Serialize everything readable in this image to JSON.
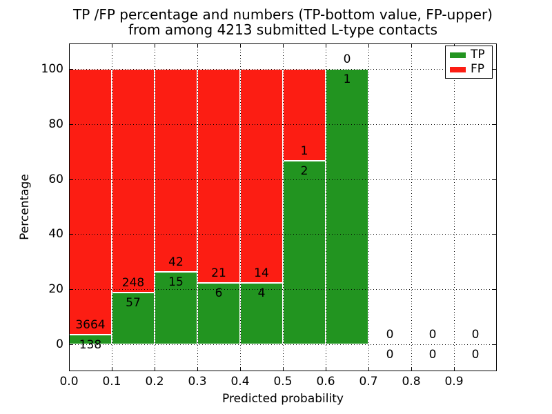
{
  "figure": {
    "title_line1": "TP /FP percentage and numbers (TP-bottom value, FP-upper)",
    "title_line2": "from among 4213 submitted L-type contacts"
  },
  "chart_data": {
    "type": "bar",
    "stacked": true,
    "normalized": "each bin scaled to 100% (TP bottom, FP top)",
    "title": "TP /FP percentage and numbers (TP-bottom value, FP-upper) from among 4213 submitted L-type contacts",
    "xlabel": "Predicted probability",
    "ylabel": "Percentage",
    "xlim": [
      0.0,
      1.0
    ],
    "ylim": [
      -10,
      109
    ],
    "grid": {
      "style": "dotted",
      "color": "#000000"
    },
    "bin_width": 0.1,
    "bin_starts": [
      0.0,
      0.1,
      0.2,
      0.3,
      0.4,
      0.5,
      0.6,
      0.7,
      0.8,
      0.9
    ],
    "x_tick_labels": [
      "0.0",
      "0.1",
      "0.2",
      "0.3",
      "0.4",
      "0.5",
      "0.6",
      "0.7",
      "0.8",
      "0.9"
    ],
    "y_ticks": [
      0,
      20,
      40,
      60,
      80,
      100
    ],
    "y_tick_labels": [
      "0",
      "20",
      "40",
      "60",
      "80",
      "100"
    ],
    "total_contacts": 4213,
    "series": [
      {
        "name": "TP",
        "color": "#229420",
        "counts": [
          138,
          57,
          15,
          6,
          4,
          2,
          1,
          0,
          0,
          0
        ]
      },
      {
        "name": "FP",
        "color": "#fc1d13",
        "counts": [
          3664,
          248,
          42,
          21,
          14,
          1,
          0,
          0,
          0,
          0
        ]
      }
    ],
    "tp_percent_per_bin": [
      3.63,
      18.69,
      26.32,
      22.22,
      22.22,
      66.67,
      100.0,
      null,
      null,
      null
    ],
    "legend": {
      "position": "upper right",
      "entries": [
        {
          "label": "TP",
          "color": "#229420"
        },
        {
          "label": "FP",
          "color": "#fc1d13"
        }
      ]
    }
  }
}
